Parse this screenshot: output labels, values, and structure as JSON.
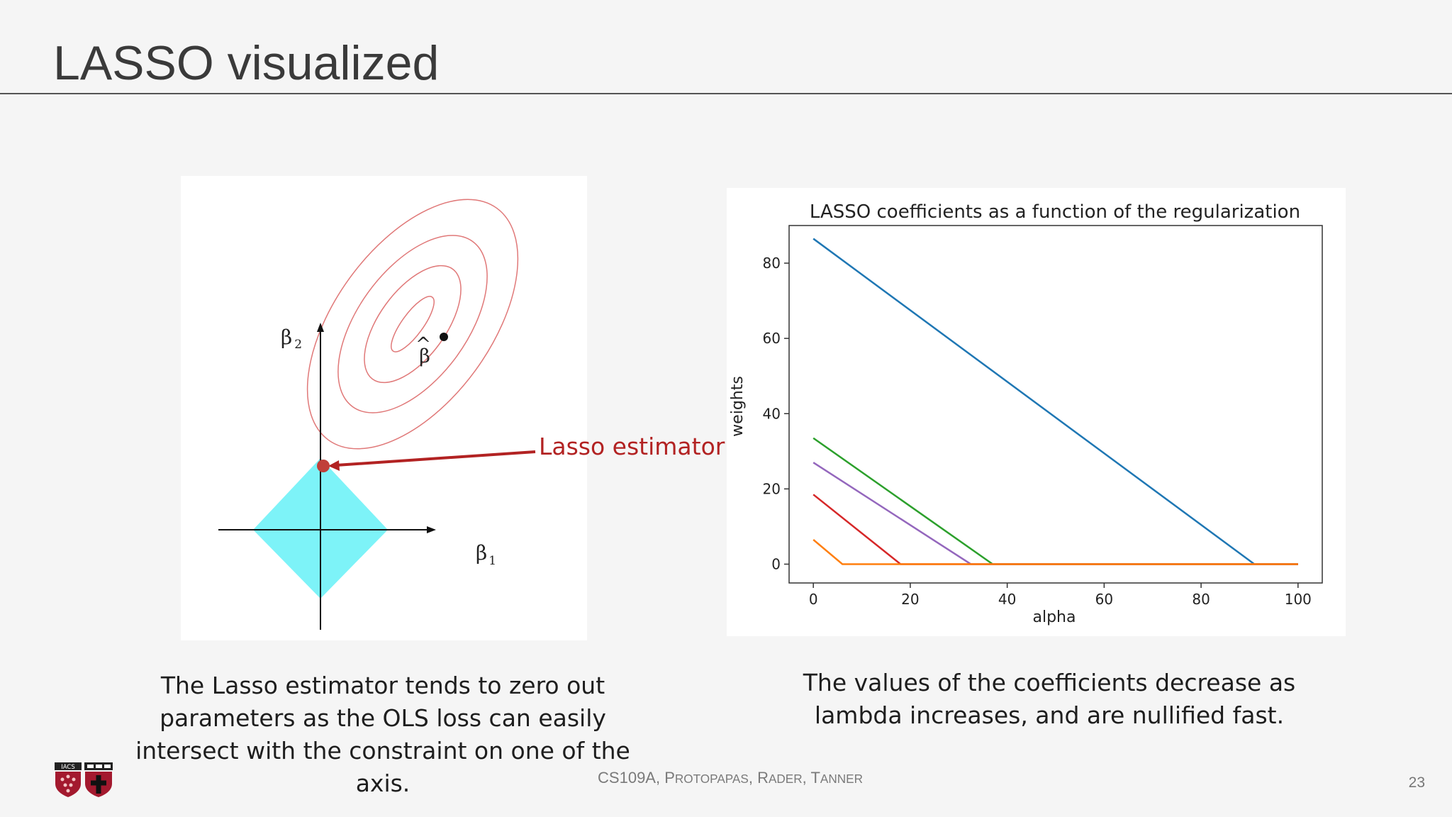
{
  "slide": {
    "title": "LASSO visualized",
    "page_number": "23",
    "footer": "CS109A, Protopapas, Rader, Tanner"
  },
  "left_figure": {
    "beta2_label": "β",
    "beta2_sub": "2",
    "beta1_label": "β",
    "beta1_sub": "1",
    "beta_hat_label": "β",
    "beta_hat_accent": "^",
    "callout_label": "Lasso estimator",
    "colors": {
      "constraint_region": "#7df3f8",
      "contours": "#e07878",
      "callout": "#b22222",
      "estimator_point": "#c0403a",
      "axes": "#111111"
    }
  },
  "captions": {
    "left": "The Lasso estimator tends to zero out parameters as the OLS loss can easily intersect with the constraint on one of the axis.",
    "right": "The values of the coefficients decrease as lambda increases, and are nullified fast."
  },
  "logos": {
    "iacs_text": "IACS"
  },
  "chart_data": {
    "type": "line",
    "title": "LASSO coefficients as a function of the regularization",
    "xlabel": "alpha",
    "ylabel": "weights",
    "xlim": [
      -5,
      105
    ],
    "ylim": [
      -5,
      90
    ],
    "xticks": [
      0,
      20,
      40,
      60,
      80,
      100
    ],
    "yticks": [
      0,
      20,
      40,
      60,
      80
    ],
    "grid": false,
    "series": [
      {
        "color": "#1f77b4",
        "x": [
          0,
          91,
          100
        ],
        "y": [
          86.5,
          0,
          0
        ]
      },
      {
        "color": "#2ca02c",
        "x": [
          0,
          37,
          100
        ],
        "y": [
          33.5,
          0,
          0
        ]
      },
      {
        "color": "#9467bd",
        "x": [
          0,
          32.5,
          100
        ],
        "y": [
          27,
          0,
          0
        ]
      },
      {
        "color": "#d62728",
        "x": [
          0,
          18,
          100
        ],
        "y": [
          18.5,
          0,
          0
        ]
      },
      {
        "color": "#ff7f0e",
        "x": [
          0,
          6,
          100
        ],
        "y": [
          6.5,
          0,
          0
        ]
      }
    ]
  }
}
